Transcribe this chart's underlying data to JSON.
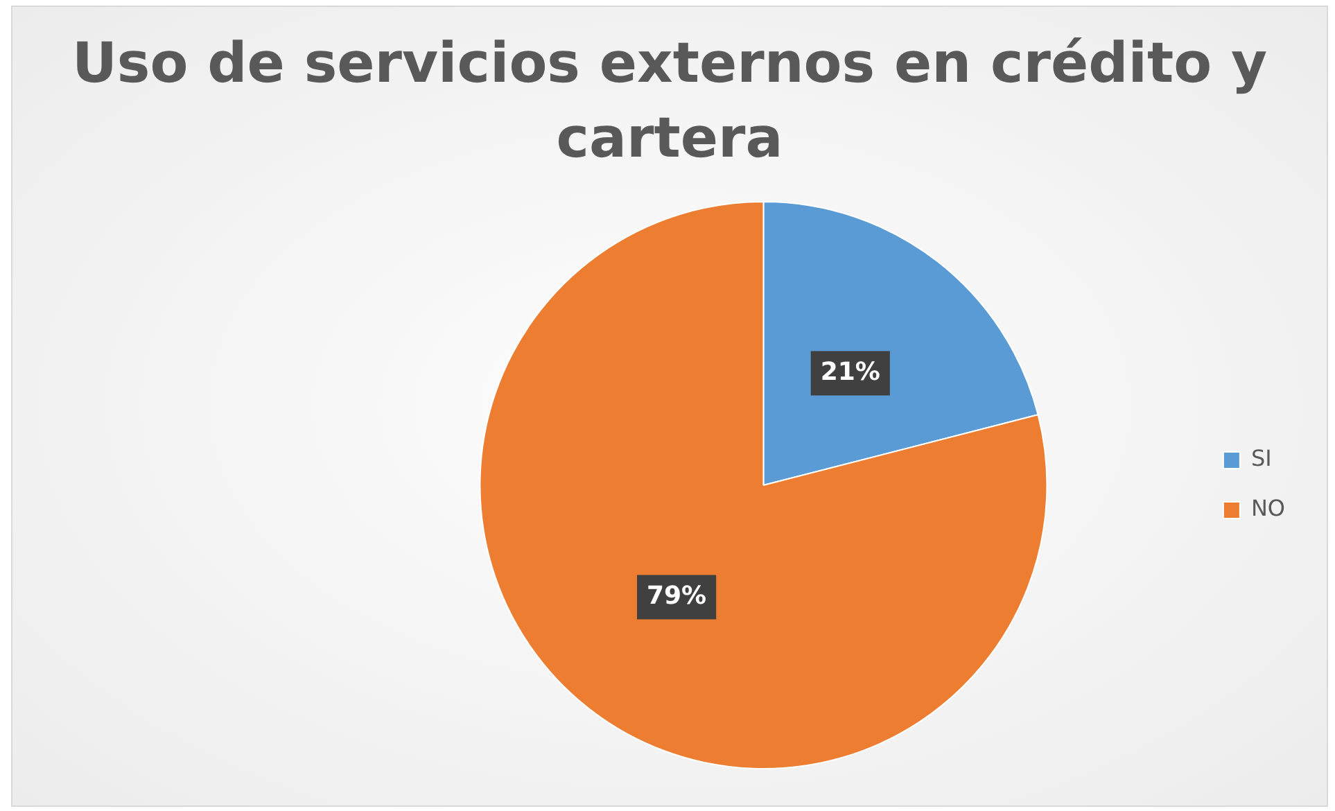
{
  "chart_data": {
    "type": "pie",
    "title": "Uso de servicios externos en crédito y cartera",
    "categories": [
      "SI",
      "NO"
    ],
    "values": [
      21,
      79
    ],
    "colors": [
      "#5b9bd5",
      "#ed7d31"
    ],
    "value_labels": [
      "21%",
      "79%"
    ],
    "legend": "right"
  }
}
